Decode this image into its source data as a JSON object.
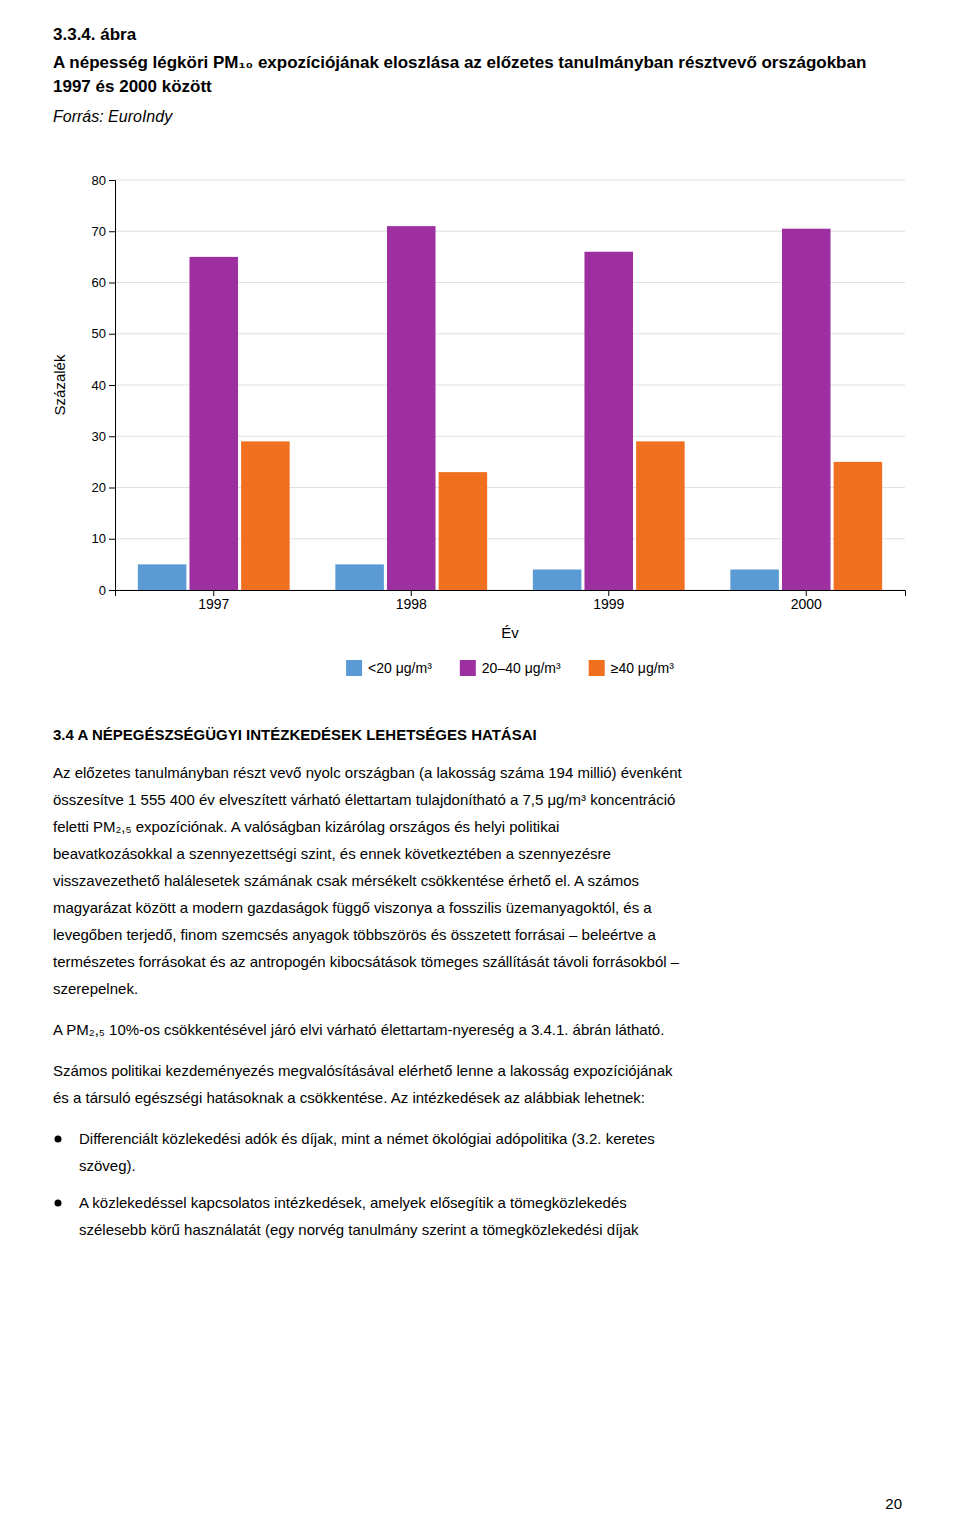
{
  "chart_data": {
    "type": "bar",
    "title": "3.3.4. ábra",
    "subtitle": "A népesség légköri PM₁₀ expozíciójának eloszlása az előzetes tanulmányban résztvevő országokban 1997 és 2000 között",
    "annotations": [
      "Forrás: EuroIndy"
    ],
    "categories": [
      "1997",
      "1998",
      "1999",
      "2000"
    ],
    "series": [
      {
        "name": "<20 μg/m³",
        "color": "#5b9bd5",
        "values": [
          5,
          5,
          4,
          4
        ]
      },
      {
        "name": "20–40 μg/m³",
        "color": "#9e2fa0",
        "values": [
          65,
          71,
          66,
          70.5
        ]
      },
      {
        "name": "≥40 μg/m³",
        "color": "#f07020",
        "values": [
          29,
          23,
          29,
          25
        ]
      }
    ],
    "xlabel": "Év",
    "ylabel": "Százalék",
    "ylim": [
      0,
      80
    ],
    "yticks": [
      0,
      10,
      20,
      30,
      40,
      50,
      60,
      70,
      80
    ],
    "grid": true,
    "legend": "bottom"
  },
  "page": {
    "heading": "3.4 A NÉPEGÉSZSÉGÜGYI INTÉZKEDÉSEK LEHETSÉGES HATÁSAI",
    "paragraphs": [
      [
        "Az előzetes tanulmányban részt vevő nyolc országban (a lakosság száma 194 millió) évenként",
        "összesítve 1 555 400 év elveszített várható élettartam tulajdonítható a 7,5 μg/m³ koncentráció",
        "feletti PM₂,₅ expozíciónak. A valóságban kizárólag országos és helyi politikai",
        "beavatkozásokkal a szennyezettségi szint, és ennek következtében a szennyezésre",
        "visszavezethető halálesetek számának csak mérsékelt csökkentése érhető el. A számos",
        "magyarázat között a modern gazdaságok függő viszonya a fosszilis üzemanyagoktól, és a",
        "levegőben terjedő, finom szemcsés anyagok többszörös és összetett forrásai – beleértve a",
        "természetes forrásokat és az antropogén kibocsátások tömeges szállítását távoli forrásokból –",
        "szerepelnek."
      ],
      [
        "A PM₂,₅ 10%-os csökkentésével járó elvi várható élettartam-nyereség a 3.4.1. ábrán látható."
      ],
      [
        "Számos politikai kezdeményezés megvalósításával elérhető lenne a lakosság expozíciójának",
        "és a társuló egészségi hatásoknak a csökkentése. Az intézkedések az alábbiak lehetnek:"
      ]
    ],
    "bullets": [
      [
        "Differenciált közlekedési adók és díjak, mint a német ökológiai adópolitika (3.2. keretes",
        "szöveg)."
      ],
      [
        "A közlekedéssel kapcsolatos intézkedések, amelyek elősegítik a tömegközlekedés",
        "szélesebb körű használatát (egy norvég tanulmány szerint a tömegközlekedési díjak"
      ]
    ],
    "page_number": "20"
  }
}
